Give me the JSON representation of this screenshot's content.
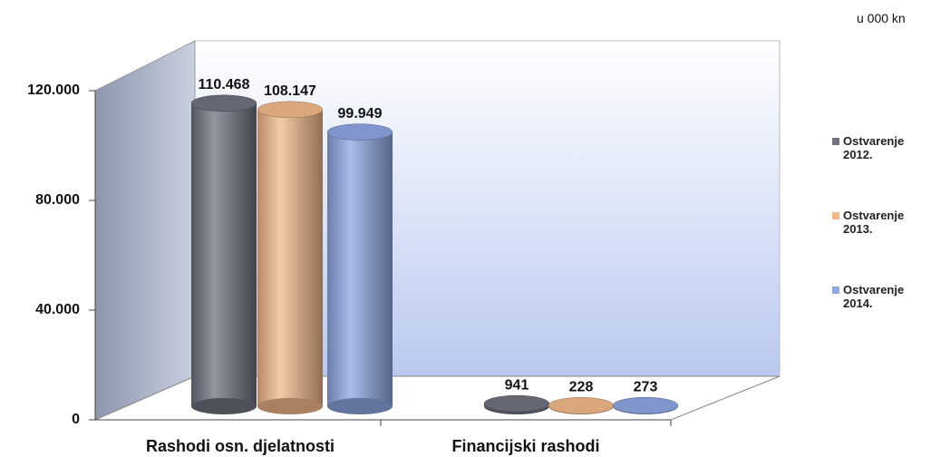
{
  "chart_data": {
    "type": "bar3d",
    "unit_label": "u 000 kn",
    "categories": [
      "Rashodi osn. djelatnosti",
      "Financijski rashodi"
    ],
    "series": [
      {
        "name": "Ostvarenje 2012.",
        "color": "#70737f",
        "values": [
          110468,
          941
        ],
        "value_labels": [
          "110.468",
          "941"
        ]
      },
      {
        "name": "Ostvarenje 2013.",
        "color": "#f2b88a",
        "values": [
          108147,
          228
        ],
        "value_labels": [
          "108.147",
          "228"
        ]
      },
      {
        "name": "Ostvarenje 2014.",
        "color": "#8ea6e2",
        "values": [
          99949,
          273
        ],
        "value_labels": [
          "99.949",
          "273"
        ]
      }
    ],
    "ylim": [
      0,
      120000
    ],
    "yticks": [
      {
        "value": 0,
        "label": "0"
      },
      {
        "value": 40000,
        "label": "40.000"
      },
      {
        "value": 80000,
        "label": "80.000"
      },
      {
        "value": 120000,
        "label": "120.000"
      }
    ],
    "legend": "right"
  }
}
